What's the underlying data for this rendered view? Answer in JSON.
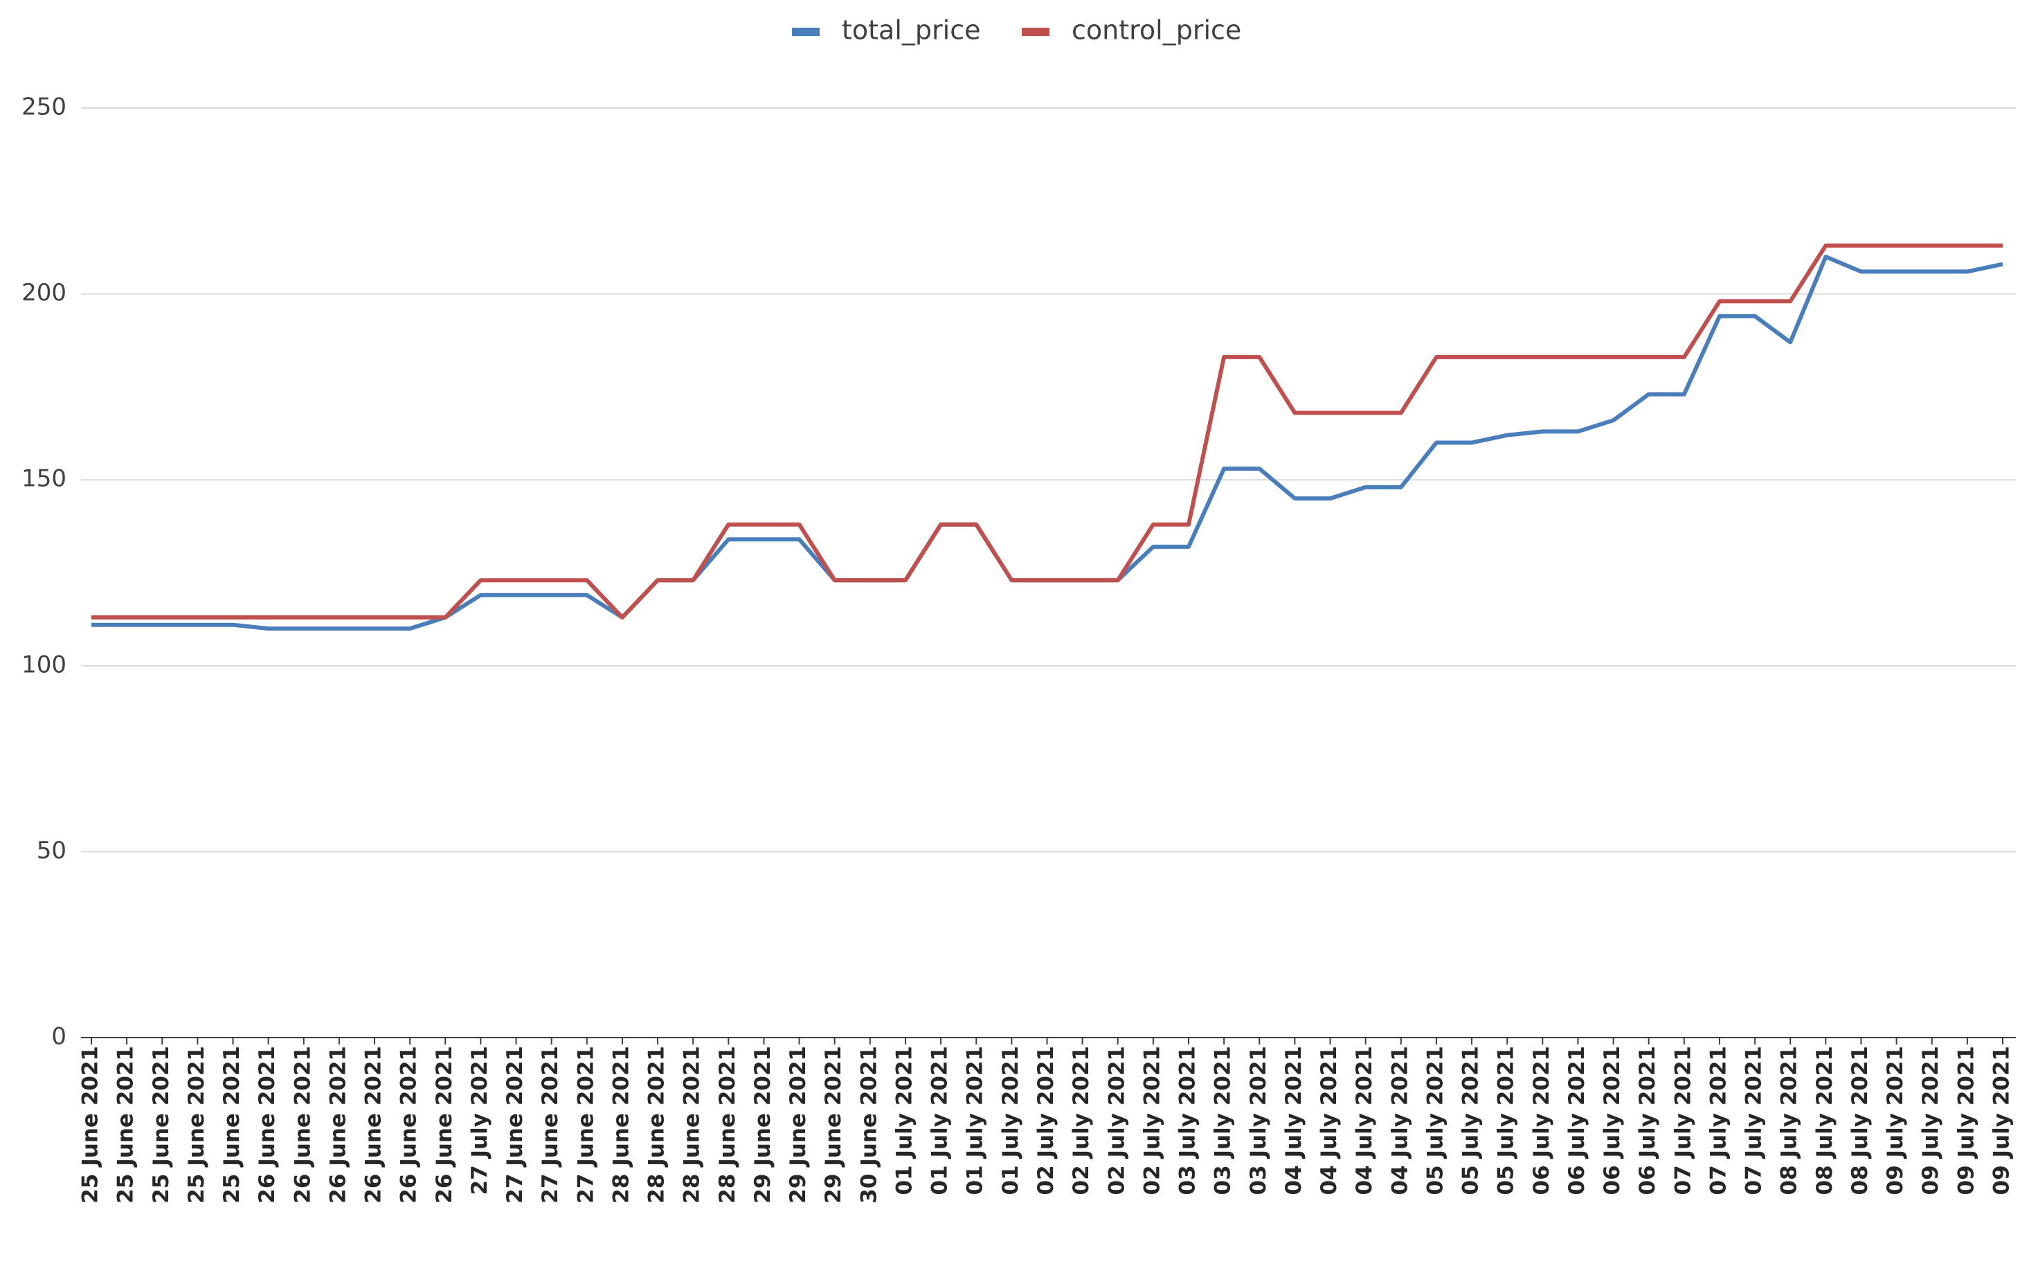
{
  "chart_data": {
    "type": "line",
    "categories": [
      "25 June 2021",
      "25 June 2021",
      "25 June 2021",
      "25 June 2021",
      "25 June 2021",
      "26 June 2021",
      "26 June 2021",
      "26 June 2021",
      "26 June 2021",
      "26 June 2021",
      "26 June 2021",
      "27 July 2021",
      "27 June 2021",
      "27 June 2021",
      "27 June 2021",
      "28 June 2021",
      "28 June 2021",
      "28 June 2021",
      "28 June 2021",
      "29 June 2021",
      "29 June 2021",
      "29 June 2021",
      "30 June 2021",
      "01 July 2021",
      "01 July 2021",
      "01 July 2021",
      "01 July 2021",
      "02 July 2021",
      "02 July 2021",
      "02 July 2021",
      "02 July 2021",
      "03 July 2021",
      "03 July 2021",
      "03 July 2021",
      "04 July 2021",
      "04 July 2021",
      "04 July 2021",
      "04 July 2021",
      "05 July 2021",
      "05 July 2021",
      "05 July 2021",
      "06 July 2021",
      "06 July 2021",
      "06 July 2021",
      "06 July 2021",
      "07 July 2021",
      "07 July 2021",
      "07 July 2021",
      "08 July 2021",
      "08 July 2021",
      "08 July 2021",
      "09 July 2021",
      "09 July 2021",
      "09 July 2021",
      "09 July 2021"
    ],
    "series": [
      {
        "name": "total_price",
        "color": "#4a7ebb",
        "values": [
          111,
          111,
          111,
          111,
          111,
          110,
          110,
          110,
          110,
          110,
          113,
          119,
          119,
          119,
          119,
          113,
          123,
          123,
          134,
          134,
          134,
          123,
          123,
          123,
          138,
          138,
          123,
          123,
          123,
          123,
          132,
          132,
          153,
          153,
          145,
          145,
          148,
          148,
          160,
          160,
          162,
          163,
          163,
          166,
          173,
          173,
          194,
          194,
          187,
          210,
          206,
          206,
          206,
          206,
          208
        ]
      },
      {
        "name": "control_price",
        "color": "#c0504d",
        "values": [
          113,
          113,
          113,
          113,
          113,
          113,
          113,
          113,
          113,
          113,
          113,
          123,
          123,
          123,
          123,
          113,
          123,
          123,
          138,
          138,
          138,
          123,
          123,
          123,
          138,
          138,
          123,
          123,
          123,
          123,
          138,
          138,
          183,
          183,
          168,
          168,
          168,
          168,
          183,
          183,
          183,
          183,
          183,
          183,
          183,
          183,
          198,
          198,
          198,
          213,
          213,
          213,
          213,
          213,
          213
        ]
      }
    ],
    "ylim": [
      0,
      250
    ],
    "yticks": [
      0,
      50,
      100,
      150,
      200,
      250
    ],
    "grid": true,
    "legend": "top"
  }
}
